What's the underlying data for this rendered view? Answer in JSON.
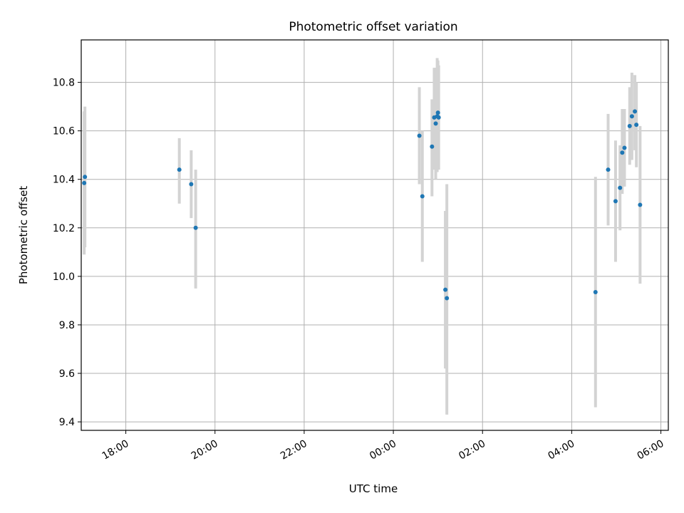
{
  "chart_data": {
    "type": "scatter",
    "title": "Photometric offset variation",
    "xlabel": "UTC time",
    "ylabel": "Photometric offset",
    "x_axis": "time",
    "xlim": [
      "17:00",
      "30:10"
    ],
    "ylim": [
      9.365,
      10.975
    ],
    "x_ticks": [
      {
        "value": "18:00",
        "label": "18:00"
      },
      {
        "value": "20:00",
        "label": "20:00"
      },
      {
        "value": "22:00",
        "label": "22:00"
      },
      {
        "value": "24:00",
        "label": "00:00"
      },
      {
        "value": "26:00",
        "label": "02:00"
      },
      {
        "value": "28:00",
        "label": "04:00"
      },
      {
        "value": "30:00",
        "label": "06:00"
      }
    ],
    "y_ticks": [
      9.4,
      9.6,
      9.8,
      10.0,
      10.2,
      10.4,
      10.6,
      10.8
    ],
    "y_tick_labels": [
      "9.4",
      "9.6",
      "9.8",
      "10.0",
      "10.2",
      "10.4",
      "10.6",
      "10.8"
    ],
    "grid": true,
    "colors": {
      "marker": "#1f77b4",
      "errorbar": "#d3d3d3",
      "grid": "#b0b0b0"
    },
    "points": [
      {
        "x": "17:04",
        "y": 10.385,
        "ylow": 10.09,
        "yhigh": 10.68
      },
      {
        "x": "17:05",
        "y": 10.41,
        "ylow": 10.12,
        "yhigh": 10.7
      },
      {
        "x": "19:12",
        "y": 10.44,
        "ylow": 10.3,
        "yhigh": 10.57
      },
      {
        "x": "19:28",
        "y": 10.38,
        "ylow": 10.24,
        "yhigh": 10.52
      },
      {
        "x": "19:34",
        "y": 10.2,
        "ylow": 9.95,
        "yhigh": 10.44
      },
      {
        "x": "24:35",
        "y": 10.58,
        "ylow": 10.38,
        "yhigh": 10.78
      },
      {
        "x": "24:39",
        "y": 10.33,
        "ylow": 10.06,
        "yhigh": 10.6
      },
      {
        "x": "24:52",
        "y": 10.535,
        "ylow": 10.33,
        "yhigh": 10.73
      },
      {
        "x": "24:55",
        "y": 10.655,
        "ylow": 10.44,
        "yhigh": 10.86
      },
      {
        "x": "24:57",
        "y": 10.63,
        "ylow": 10.4,
        "yhigh": 10.86
      },
      {
        "x": "24:59",
        "y": 10.66,
        "ylow": 10.43,
        "yhigh": 10.9
      },
      {
        "x": "25:00",
        "y": 10.675,
        "ylow": 10.46,
        "yhigh": 10.89
      },
      {
        "x": "25:01",
        "y": 10.655,
        "ylow": 10.44,
        "yhigh": 10.87
      },
      {
        "x": "25:10",
        "y": 9.945,
        "ylow": 9.62,
        "yhigh": 10.27
      },
      {
        "x": "25:12",
        "y": 9.91,
        "ylow": 9.43,
        "yhigh": 10.38
      },
      {
        "x": "28:32",
        "y": 9.935,
        "ylow": 9.46,
        "yhigh": 10.41
      },
      {
        "x": "28:49",
        "y": 10.44,
        "ylow": 10.21,
        "yhigh": 10.67
      },
      {
        "x": "28:59",
        "y": 10.31,
        "ylow": 10.06,
        "yhigh": 10.56
      },
      {
        "x": "29:05",
        "y": 10.365,
        "ylow": 10.19,
        "yhigh": 10.54
      },
      {
        "x": "29:08",
        "y": 10.51,
        "ylow": 10.34,
        "yhigh": 10.69
      },
      {
        "x": "29:11",
        "y": 10.53,
        "ylow": 10.37,
        "yhigh": 10.69
      },
      {
        "x": "29:18",
        "y": 10.62,
        "ylow": 10.46,
        "yhigh": 10.78
      },
      {
        "x": "29:21",
        "y": 10.66,
        "ylow": 10.48,
        "yhigh": 10.84
      },
      {
        "x": "29:25",
        "y": 10.68,
        "ylow": 10.52,
        "yhigh": 10.83
      },
      {
        "x": "29:27",
        "y": 10.625,
        "ylow": 10.45,
        "yhigh": 10.8
      },
      {
        "x": "29:32",
        "y": 10.295,
        "ylow": 9.97,
        "yhigh": 10.62
      }
    ]
  }
}
